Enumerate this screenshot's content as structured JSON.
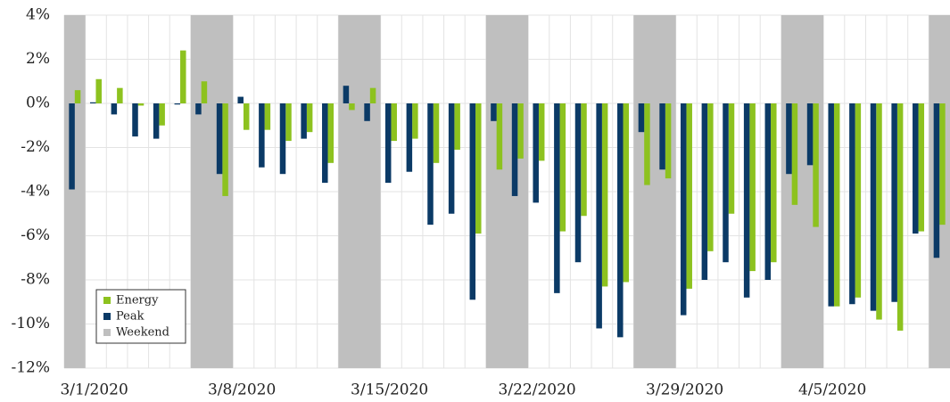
{
  "chart_data": {
    "type": "bar",
    "categories": [
      "3/1/2020",
      null,
      null,
      null,
      null,
      null,
      null,
      "3/8/2020",
      null,
      null,
      null,
      null,
      null,
      null,
      "3/15/2020",
      null,
      null,
      null,
      null,
      null,
      null,
      "3/22/2020",
      null,
      null,
      null,
      null,
      null,
      null,
      "3/29/2020",
      null,
      null,
      null,
      null,
      null,
      null,
      "4/5/2020",
      null,
      null,
      null,
      null,
      null,
      null
    ],
    "series": [
      {
        "name": "Energy",
        "color": "#8dc21f",
        "values": [
          0.6,
          1.1,
          0.7,
          -0.1,
          -1.0,
          2.4,
          1.0,
          -4.2,
          -1.2,
          -1.2,
          -1.7,
          -1.3,
          -2.7,
          -0.3,
          0.7,
          -1.7,
          -1.6,
          -2.7,
          -2.1,
          -5.9,
          -3.0,
          -2.5,
          -2.6,
          -5.8,
          -5.1,
          -8.3,
          -8.1,
          -3.7,
          -3.4,
          -8.4,
          -6.7,
          -5.0,
          -7.6,
          -7.2,
          -4.6,
          -5.6,
          -9.2,
          -8.8,
          -9.8,
          -10.3,
          -5.8,
          -5.5
        ]
      },
      {
        "name": "Peak",
        "color": "#0b3a66",
        "values": [
          -3.9,
          0.05,
          -0.5,
          -1.5,
          -1.6,
          -0.05,
          -0.5,
          -3.2,
          0.3,
          -2.9,
          -3.2,
          -1.6,
          -3.6,
          0.8,
          -0.8,
          -3.6,
          -3.1,
          -5.5,
          -5.0,
          -8.9,
          -0.8,
          -4.2,
          -4.5,
          -8.6,
          -7.2,
          -10.2,
          -10.6,
          -1.3,
          -3.0,
          -9.6,
          -8.0,
          -7.2,
          -8.8,
          -8.0,
          -3.2,
          -2.8,
          -9.2,
          -9.1,
          -9.4,
          -9.0,
          -5.9,
          -7.0
        ]
      }
    ],
    "weekend": {
      "name": "Weekend",
      "color": "#bfbfbf",
      "indices": [
        0,
        6,
        7,
        13,
        14,
        20,
        21,
        27,
        28,
        34,
        35,
        41
      ]
    },
    "ylim": [
      -12,
      4
    ],
    "yticks": [
      {
        "value": -12,
        "label": "-12%"
      },
      {
        "value": -10,
        "label": "-10%"
      },
      {
        "value": -8,
        "label": "-8%"
      },
      {
        "value": -6,
        "label": "-6%"
      },
      {
        "value": -4,
        "label": "-4%"
      },
      {
        "value": -2,
        "label": "-2%"
      },
      {
        "value": 0,
        "label": "0%"
      },
      {
        "value": 2,
        "label": "2%"
      },
      {
        "value": 4,
        "label": "4%"
      }
    ],
    "grid": true,
    "legend": "lower left"
  }
}
